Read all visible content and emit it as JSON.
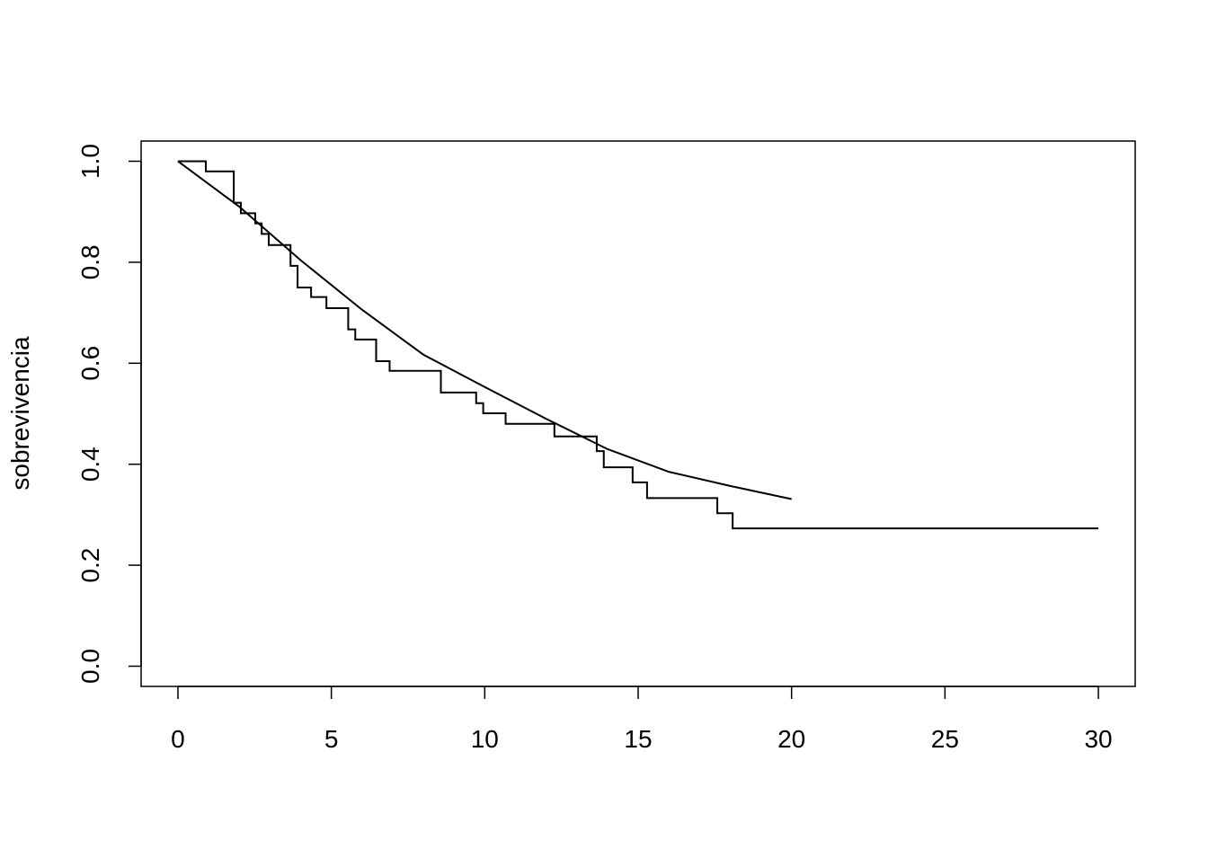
{
  "chart_data": {
    "type": "line",
    "ylabel": "sobrevivencia",
    "xlim": [
      -1.2,
      31.2
    ],
    "ylim": [
      -0.04,
      1.04
    ],
    "xticks": [
      0,
      5,
      10,
      15,
      20,
      25,
      30
    ],
    "yticks": [
      {
        "value": 0,
        "label": "0.0"
      },
      0.2,
      0.4,
      0.6,
      0.8,
      {
        "value": 1,
        "label": "1.0"
      }
    ],
    "grid": false,
    "series": [
      {
        "color": "#000000",
        "drawstyle": "steps-post",
        "x": [
          0,
          0.91,
          1.82,
          2.05,
          2.52,
          2.73,
          2.96,
          3.67,
          3.9,
          4.34,
          4.84,
          5.55,
          5.78,
          6.46,
          6.9,
          8.57,
          9.72,
          9.95,
          10.68,
          12.27,
          13.65,
          13.88,
          14.82,
          15.29,
          17.58,
          18.08,
          30
        ],
        "values": [
          1.0,
          0.98,
          0.918,
          0.897,
          0.877,
          0.856,
          0.834,
          0.793,
          0.75,
          0.731,
          0.709,
          0.667,
          0.647,
          0.604,
          0.585,
          0.542,
          0.521,
          0.501,
          0.48,
          0.455,
          0.426,
          0.394,
          0.364,
          0.333,
          0.303,
          0.273,
          0.273
        ]
      },
      {
        "color": "#000000",
        "drawstyle": "default",
        "x": [
          0,
          2,
          4,
          6,
          8,
          10,
          12,
          14,
          16,
          18,
          20
        ],
        "values": [
          1.0,
          0.91,
          0.804,
          0.706,
          0.617,
          0.553,
          0.49,
          0.43,
          0.385,
          0.357,
          0.331
        ]
      }
    ]
  }
}
